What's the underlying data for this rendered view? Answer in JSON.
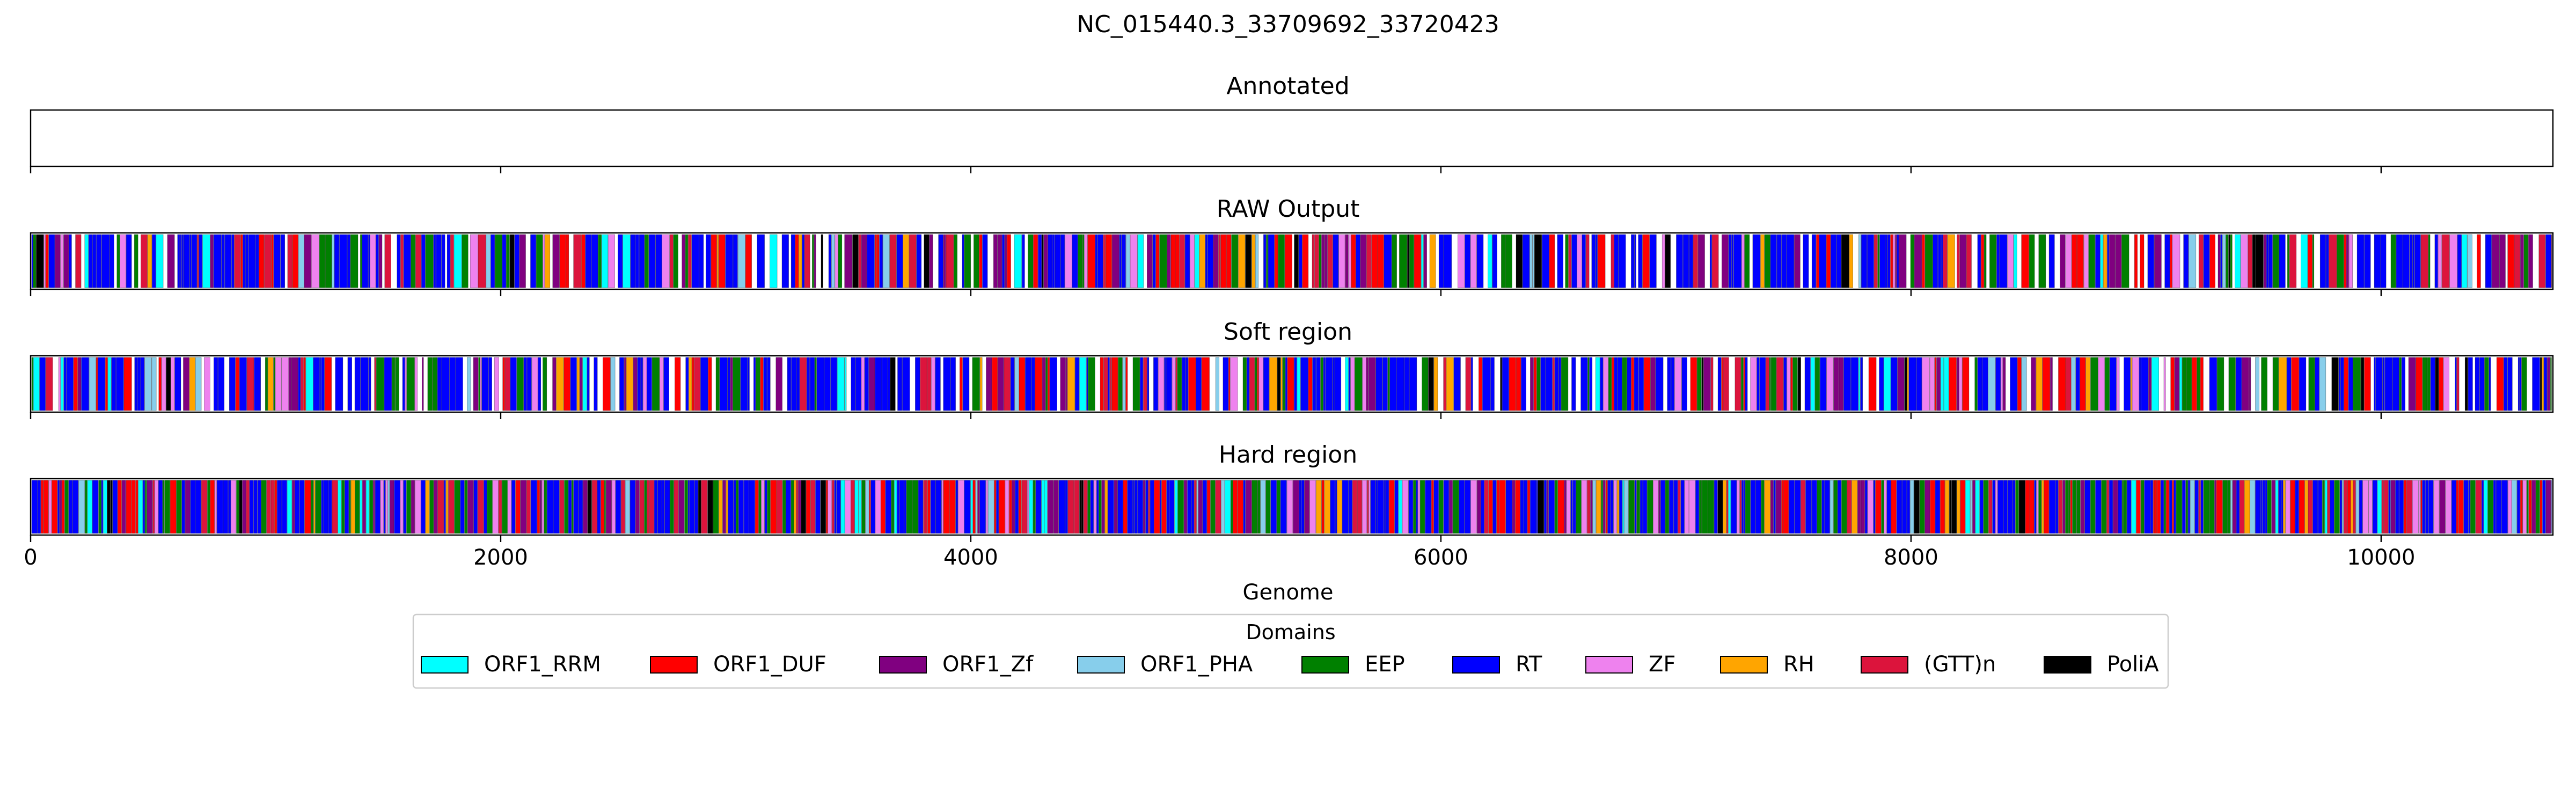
{
  "chart_data": {
    "type": "bar",
    "title": "NC_015440.3_33709692_33720423",
    "xlabel": "Genome",
    "xlim": [
      0,
      10731
    ],
    "xticks": [
      0,
      2000,
      4000,
      6000,
      8000,
      10000
    ],
    "panels": [
      {
        "title": "Annotated",
        "segments": []
      },
      {
        "title": "RAW Output",
        "fill": "sparse",
        "segments": []
      },
      {
        "title": "Soft region",
        "fill": "sparse",
        "segments": []
      },
      {
        "title": "Hard region",
        "fill": "dense",
        "segments": []
      }
    ],
    "legend": {
      "title": "Domains",
      "placement": "bottom-center",
      "items": [
        {
          "label": "ORF1_RRM",
          "color": "#00ffff"
        },
        {
          "label": "ORF1_DUF",
          "color": "#ff0000"
        },
        {
          "label": "ORF1_Zf",
          "color": "#800080"
        },
        {
          "label": "ORF1_PHA",
          "color": "#87ceeb"
        },
        {
          "label": "EEP",
          "color": "#008000"
        },
        {
          "label": "RT",
          "color": "#0000ff"
        },
        {
          "label": "ZF",
          "color": "#ee82ee"
        },
        {
          "label": "RH",
          "color": "#ffa500"
        },
        {
          "label": "(GTT)n",
          "color": "#dc143c"
        },
        {
          "label": "PoliA",
          "color": "#000000"
        }
      ]
    }
  }
}
